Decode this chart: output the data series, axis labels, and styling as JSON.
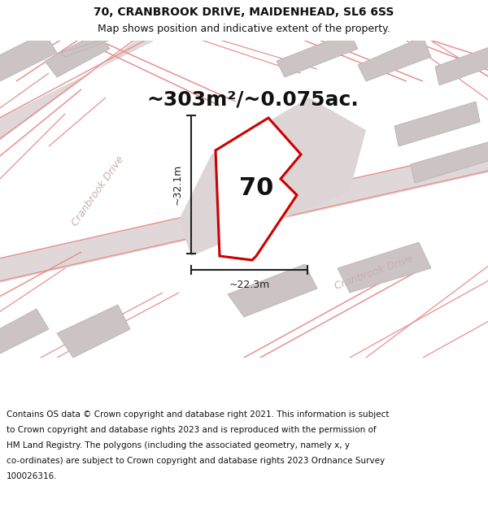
{
  "title": "70, CRANBROOK DRIVE, MAIDENHEAD, SL6 6SS",
  "subtitle": "Map shows position and indicative extent of the property.",
  "area_text": "~303m²/~0.075ac.",
  "number_label": "70",
  "dim_vertical": "~32.1m",
  "dim_horizontal": "~22.3m",
  "road_label1": "Cranbrook Drive",
  "road_label2": "Cranbrook Drive",
  "footer_lines": [
    "Contains OS data © Crown copyright and database right 2021. This information is subject",
    "to Crown copyright and database rights 2023 and is reproduced with the permission of",
    "HM Land Registry. The polygons (including the associated geometry, namely x, y",
    "co-ordinates) are subject to Crown copyright and database rights 2023 Ordnance Survey",
    "100026316."
  ],
  "map_bg": "#f0ebeb",
  "road_band_color": "#e0d8d8",
  "building_color": "#ccc4c4",
  "building_edge": "#bbb3b3",
  "street_line_color": "#e89090",
  "prop_fill": "#ffffff",
  "prop_stroke": "#cc0000",
  "road_label_color": "#c8b0b0",
  "text_color": "#111111",
  "dim_color": "#222222",
  "title_fontsize": 10,
  "subtitle_fontsize": 9,
  "area_fontsize": 18,
  "number_fontsize": 22,
  "dim_fontsize": 9,
  "road_fontsize": 9,
  "footer_fontsize": 7.5
}
